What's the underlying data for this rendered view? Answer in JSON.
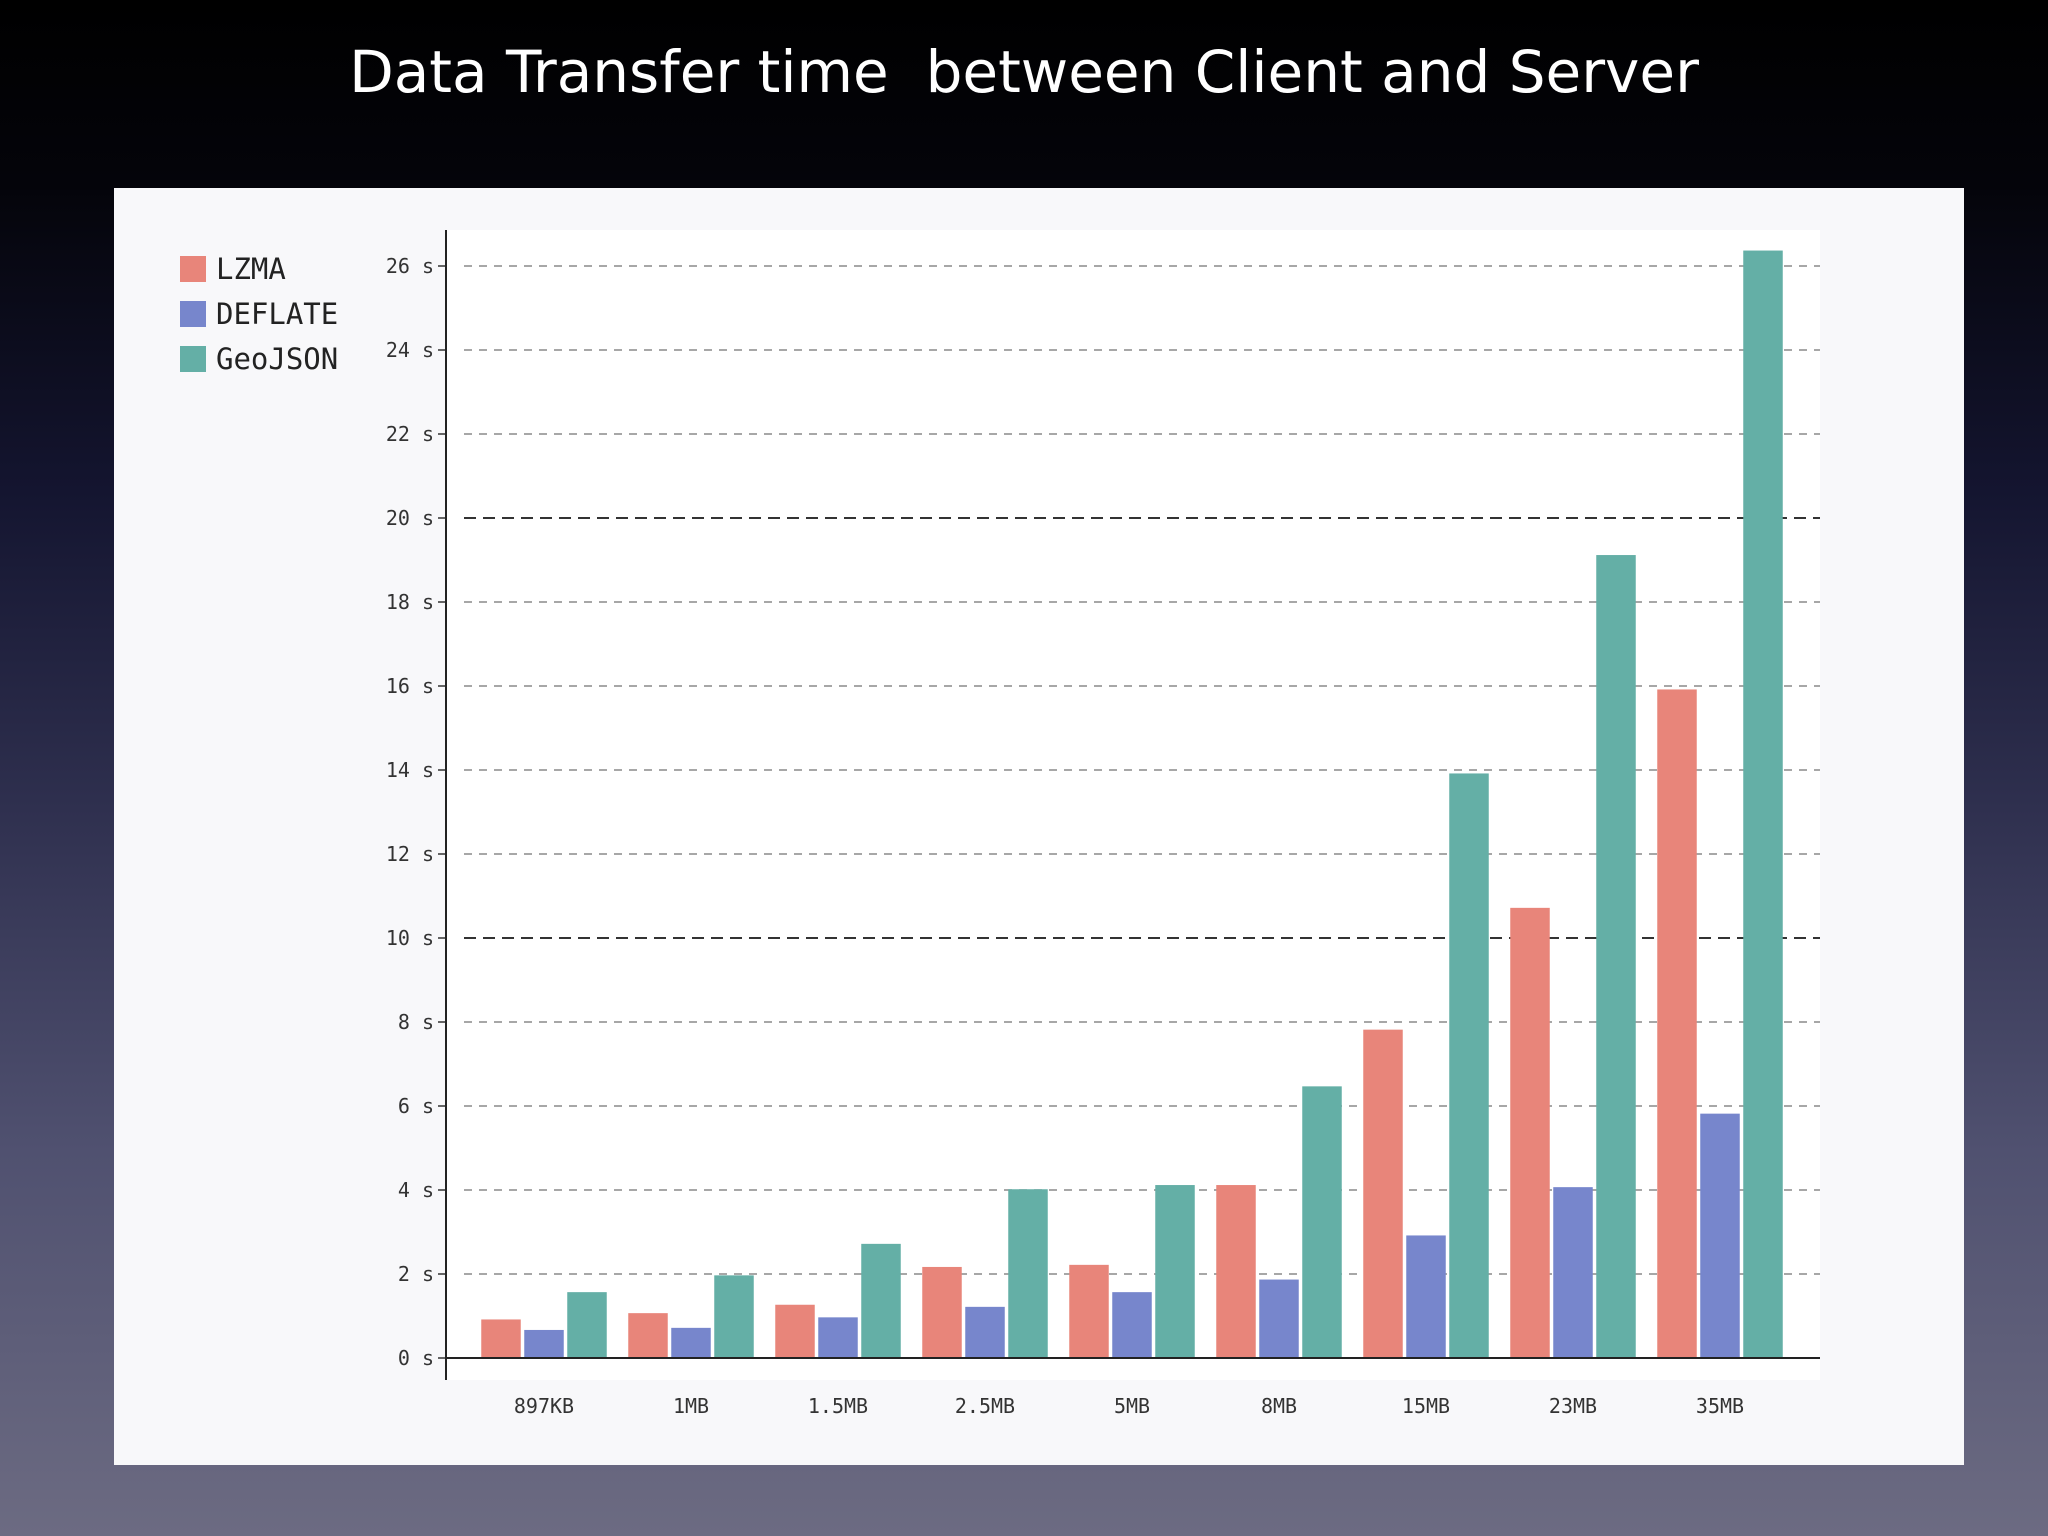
{
  "slide": {
    "title": "Data Transfer time  between Client and Server"
  },
  "legend": [
    {
      "name": "LZMA",
      "color": "#e8857a"
    },
    {
      "name": "DEFLATE",
      "color": "#7786cc"
    },
    {
      "name": "GeoJSON",
      "color": "#64afa6"
    }
  ],
  "chart_data": {
    "type": "bar",
    "title": "Data Transfer time  between Client and Server",
    "xlabel": "",
    "ylabel": "",
    "categories": [
      "897KB",
      "1MB",
      "1.5MB",
      "2.5MB",
      "5MB",
      "8MB",
      "15MB",
      "23MB",
      "35MB"
    ],
    "series": [
      {
        "name": "LZMA",
        "color": "#e8857a",
        "values": [
          0.9,
          1.05,
          1.25,
          2.15,
          2.2,
          4.1,
          7.8,
          10.7,
          15.9
        ]
      },
      {
        "name": "DEFLATE",
        "color": "#7786cc",
        "values": [
          0.65,
          0.7,
          0.95,
          1.2,
          1.55,
          1.85,
          2.9,
          4.05,
          5.8
        ]
      },
      {
        "name": "GeoJSON",
        "color": "#64afa6",
        "values": [
          1.55,
          1.95,
          2.7,
          4.0,
          4.1,
          6.45,
          13.9,
          19.1,
          26.35
        ]
      }
    ],
    "ylim": [
      0,
      27
    ],
    "yticks": [
      "0 s",
      "2 s",
      "4 s",
      "6 s",
      "8 s",
      "10 s",
      "12 s",
      "14 s",
      "16 s",
      "18 s",
      "20 s",
      "22 s",
      "24 s",
      "26 s"
    ],
    "grid": true,
    "legend_position": "top-left"
  }
}
